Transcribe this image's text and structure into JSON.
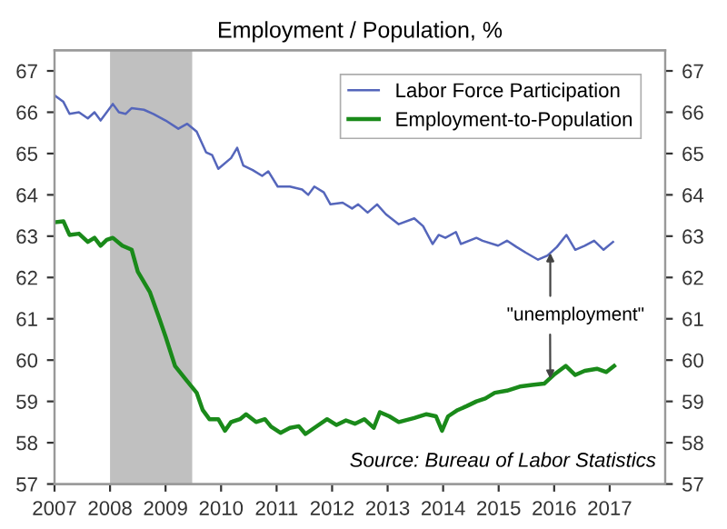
{
  "chart_data": {
    "type": "line",
    "title": "Employment / Population, %",
    "xlim": [
      2007,
      2018
    ],
    "xticks": [
      2007,
      2008,
      2009,
      2010,
      2011,
      2012,
      2013,
      2014,
      2015,
      2016,
      2017
    ],
    "ylim": [
      57,
      67.5
    ],
    "yticks": [
      57,
      58,
      59,
      60,
      61,
      62,
      63,
      64,
      65,
      66,
      67
    ],
    "y2lim": [
      57,
      67.5
    ],
    "y2ticks": [
      57,
      58,
      59,
      60,
      61,
      62,
      63,
      64,
      65,
      66,
      67
    ],
    "grid": false,
    "legend": "top right",
    "marker": "none",
    "line_style": "solid",
    "bands": [
      {
        "axis": "x",
        "from": 2008.0,
        "to": 2009.48,
        "color": "#c0c0c0"
      }
    ],
    "series": [
      {
        "name": "Labor Force Participation",
        "color": "#5566bb",
        "x": [
          2007.02,
          2007.16,
          2007.27,
          2007.44,
          2007.6,
          2007.72,
          2007.83,
          2007.94,
          2008.05,
          2008.16,
          2008.28,
          2008.39,
          2008.61,
          2008.78,
          2009.0,
          2009.23,
          2009.39,
          2009.56,
          2009.73,
          2009.84,
          2009.95,
          2010.18,
          2010.29,
          2010.4,
          2010.57,
          2010.74,
          2010.85,
          2011.02,
          2011.24,
          2011.46,
          2011.57,
          2011.68,
          2011.85,
          2011.97,
          2012.19,
          2012.36,
          2012.47,
          2012.64,
          2012.81,
          2012.97,
          2013.2,
          2013.48,
          2013.64,
          2013.81,
          2013.92,
          2014.04,
          2014.23,
          2014.32,
          2014.6,
          2014.71,
          2014.99,
          2015.15,
          2015.32,
          2015.49,
          2015.71,
          2015.88,
          2016.05,
          2016.22,
          2016.38,
          2016.55,
          2016.72,
          2016.89,
          2017.06
        ],
        "values": [
          66.39,
          66.25,
          65.96,
          66.0,
          65.85,
          66.0,
          65.8,
          66.0,
          66.2,
          66.0,
          65.96,
          66.1,
          66.06,
          65.96,
          65.8,
          65.6,
          65.72,
          65.53,
          65.03,
          64.96,
          64.63,
          64.89,
          65.14,
          64.71,
          64.6,
          64.46,
          64.57,
          64.2,
          64.2,
          64.13,
          64.0,
          64.2,
          64.06,
          63.77,
          63.81,
          63.67,
          63.77,
          63.57,
          63.77,
          63.53,
          63.29,
          63.43,
          63.24,
          62.81,
          63.03,
          62.96,
          63.1,
          62.81,
          62.96,
          62.89,
          62.77,
          62.89,
          62.74,
          62.6,
          62.43,
          62.53,
          62.74,
          63.03,
          62.67,
          62.77,
          62.89,
          62.67,
          62.86
        ]
      },
      {
        "name": "Employment-to-Population",
        "color": "#1a8a1a",
        "x": [
          2007.02,
          2007.16,
          2007.27,
          2007.44,
          2007.6,
          2007.72,
          2007.83,
          2007.94,
          2008.05,
          2008.22,
          2008.39,
          2008.5,
          2008.72,
          2008.89,
          2009.0,
          2009.17,
          2009.34,
          2009.56,
          2009.67,
          2009.79,
          2009.95,
          2010.07,
          2010.18,
          2010.34,
          2010.45,
          2010.63,
          2010.79,
          2010.9,
          2011.07,
          2011.24,
          2011.4,
          2011.52,
          2011.68,
          2011.91,
          2012.08,
          2012.25,
          2012.41,
          2012.58,
          2012.75,
          2012.86,
          2013.03,
          2013.2,
          2013.48,
          2013.7,
          2013.87,
          2013.98,
          2014.09,
          2014.26,
          2014.43,
          2014.6,
          2014.76,
          2014.93,
          2015.15,
          2015.38,
          2015.6,
          2015.82,
          2015.99,
          2016.21,
          2016.38,
          2016.55,
          2016.77,
          2016.94,
          2017.08
        ],
        "values": [
          63.34,
          63.36,
          63.03,
          63.06,
          62.86,
          62.96,
          62.77,
          62.91,
          62.96,
          62.77,
          62.67,
          62.14,
          61.64,
          61.0,
          60.57,
          59.86,
          59.57,
          59.21,
          58.79,
          58.57,
          58.57,
          58.29,
          58.5,
          58.57,
          58.69,
          58.5,
          58.57,
          58.39,
          58.24,
          58.36,
          58.4,
          58.21,
          58.36,
          58.57,
          58.43,
          58.54,
          58.46,
          58.57,
          58.36,
          58.74,
          58.64,
          58.5,
          58.6,
          58.69,
          58.64,
          58.29,
          58.64,
          58.79,
          58.89,
          59.0,
          59.07,
          59.21,
          59.26,
          59.36,
          59.4,
          59.43,
          59.64,
          59.86,
          59.64,
          59.74,
          59.79,
          59.71,
          59.86
        ]
      }
    ],
    "annotations": [
      {
        "text": "\"unemployment\"",
        "x": 2015.93,
        "y": 59.55
      },
      "Source: Bureau of Labor Statistics"
    ]
  }
}
